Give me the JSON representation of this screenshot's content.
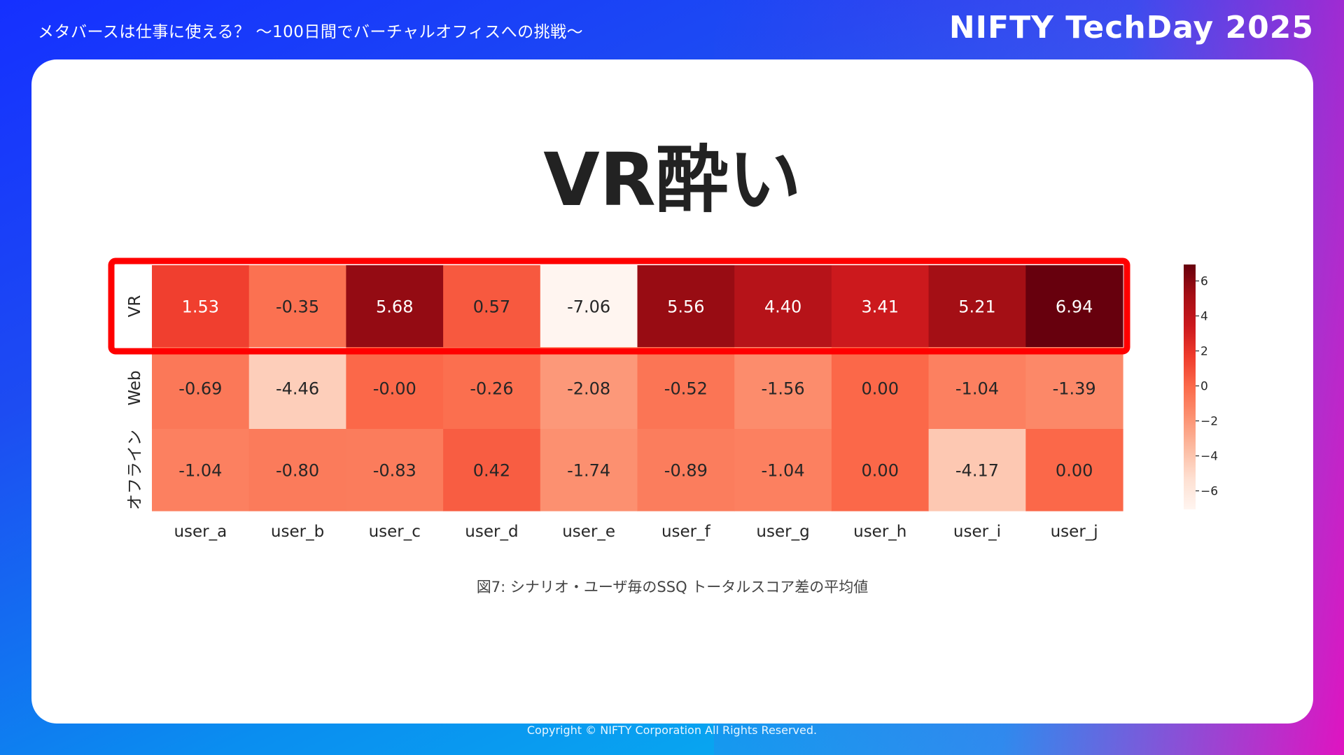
{
  "header": {
    "session_title": "メタバースは仕事に使える？ 〜100日間でバーチャルオフィスへの挑戦〜",
    "brand": "NIFTY TechDay 2025"
  },
  "slide": {
    "title": "VR酔い",
    "caption": "図7: シナリオ・ユーザ毎のSSQ トータルスコア差の平均値"
  },
  "footer": {
    "copyright": "Copyright © NIFTY Corporation All Rights Reserved."
  },
  "colors": {
    "highlight_box": "#ff0000",
    "colormap": "Reds"
  },
  "chart_data": {
    "type": "heatmap",
    "title": "",
    "xlabel": "",
    "ylabel": "",
    "x": [
      "user_a",
      "user_b",
      "user_c",
      "user_d",
      "user_e",
      "user_f",
      "user_g",
      "user_h",
      "user_i",
      "user_j"
    ],
    "y": [
      "VR",
      "Web",
      "オフライン"
    ],
    "values": [
      [
        1.53,
        -0.35,
        5.68,
        0.57,
        -7.06,
        5.56,
        4.4,
        3.41,
        5.21,
        6.94
      ],
      [
        -0.69,
        -4.46,
        -0.0,
        -0.26,
        -2.08,
        -0.52,
        -1.56,
        0.0,
        -1.04,
        -1.39
      ],
      [
        -1.04,
        -0.8,
        -0.83,
        0.42,
        -1.74,
        -0.89,
        -1.04,
        0.0,
        -4.17,
        0.0
      ]
    ],
    "labels": [
      [
        "1.53",
        "-0.35",
        "5.68",
        "0.57",
        "-7.06",
        "5.56",
        "4.40",
        "3.41",
        "5.21",
        "6.94"
      ],
      [
        "-0.69",
        "-4.46",
        "-0.00",
        "-0.26",
        "-2.08",
        "-0.52",
        "-1.56",
        "0.00",
        "-1.04",
        "-1.39"
      ],
      [
        "-1.04",
        "-0.80",
        "-0.83",
        "0.42",
        "-1.74",
        "-0.89",
        "-1.04",
        "0.00",
        "-4.17",
        "0.00"
      ]
    ],
    "color_range": [
      -7.06,
      6.94
    ],
    "colorbar_ticks": [
      "6",
      "4",
      "2",
      "0",
      "−2",
      "−4",
      "−6"
    ],
    "colorbar_tick_values": [
      6,
      4,
      2,
      0,
      -2,
      -4,
      -6
    ],
    "highlighted_row": "VR"
  }
}
